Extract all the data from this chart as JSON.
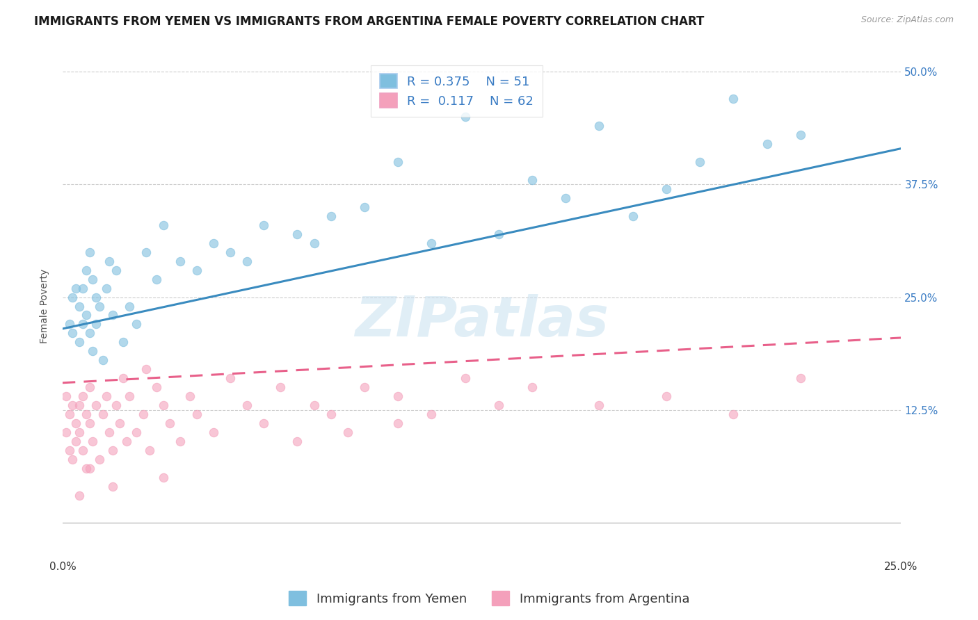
{
  "title": "IMMIGRANTS FROM YEMEN VS IMMIGRANTS FROM ARGENTINA FEMALE POVERTY CORRELATION CHART",
  "source": "Source: ZipAtlas.com",
  "xlabel_label": "Immigrants from Yemen",
  "xlabel2_label": "Immigrants from Argentina",
  "ylabel": "Female Poverty",
  "xlim": [
    0.0,
    0.25
  ],
  "ylim": [
    -0.04,
    0.52
  ],
  "plot_ylim": [
    0.0,
    0.52
  ],
  "ytick_values": [
    0.125,
    0.25,
    0.375,
    0.5
  ],
  "xtick_values": [
    0.0,
    0.25
  ],
  "xtick_labels": [
    "0.0%",
    "25.0%"
  ],
  "R_yemen": 0.375,
  "N_yemen": 51,
  "R_argentina": 0.117,
  "N_argentina": 62,
  "color_yemen": "#7fbfdf",
  "color_argentina": "#f4a0bb",
  "color_trendline_yemen": "#3a8bbf",
  "color_trendline_argentina": "#e8608a",
  "watermark": "ZIPatlas",
  "title_fontsize": 12,
  "axis_label_fontsize": 10,
  "tick_fontsize": 11,
  "legend_fontsize": 13,
  "trendline_yemen_x0": 0.0,
  "trendline_yemen_y0": 0.215,
  "trendline_yemen_x1": 0.25,
  "trendline_yemen_y1": 0.415,
  "trendline_arg_x0": 0.0,
  "trendline_arg_y0": 0.155,
  "trendline_arg_x1": 0.25,
  "trendline_arg_y1": 0.205,
  "yemen_scatter_x": [
    0.002,
    0.003,
    0.003,
    0.004,
    0.005,
    0.005,
    0.006,
    0.006,
    0.007,
    0.007,
    0.008,
    0.008,
    0.009,
    0.009,
    0.01,
    0.01,
    0.011,
    0.012,
    0.013,
    0.014,
    0.015,
    0.016,
    0.018,
    0.02,
    0.022,
    0.025,
    0.028,
    0.03,
    0.035,
    0.04,
    0.045,
    0.05,
    0.06,
    0.07,
    0.08,
    0.09,
    0.1,
    0.12,
    0.14,
    0.16,
    0.18,
    0.2,
    0.22,
    0.13,
    0.15,
    0.17,
    0.19,
    0.21,
    0.11,
    0.055,
    0.075
  ],
  "yemen_scatter_y": [
    0.22,
    0.21,
    0.25,
    0.26,
    0.2,
    0.24,
    0.22,
    0.26,
    0.28,
    0.23,
    0.21,
    0.3,
    0.27,
    0.19,
    0.25,
    0.22,
    0.24,
    0.18,
    0.26,
    0.29,
    0.23,
    0.28,
    0.2,
    0.24,
    0.22,
    0.3,
    0.27,
    0.33,
    0.29,
    0.28,
    0.31,
    0.3,
    0.33,
    0.32,
    0.34,
    0.35,
    0.4,
    0.45,
    0.38,
    0.44,
    0.37,
    0.47,
    0.43,
    0.32,
    0.36,
    0.34,
    0.4,
    0.42,
    0.31,
    0.29,
    0.31
  ],
  "argentina_scatter_x": [
    0.001,
    0.001,
    0.002,
    0.002,
    0.003,
    0.003,
    0.004,
    0.004,
    0.005,
    0.005,
    0.006,
    0.006,
    0.007,
    0.007,
    0.008,
    0.008,
    0.009,
    0.01,
    0.011,
    0.012,
    0.013,
    0.014,
    0.015,
    0.016,
    0.017,
    0.018,
    0.019,
    0.02,
    0.022,
    0.024,
    0.026,
    0.028,
    0.03,
    0.032,
    0.035,
    0.038,
    0.04,
    0.045,
    0.05,
    0.055,
    0.06,
    0.065,
    0.07,
    0.075,
    0.08,
    0.085,
    0.09,
    0.1,
    0.11,
    0.12,
    0.13,
    0.14,
    0.16,
    0.18,
    0.2,
    0.22,
    0.1,
    0.03,
    0.025,
    0.015,
    0.008,
    0.005
  ],
  "argentina_scatter_y": [
    0.1,
    0.14,
    0.08,
    0.12,
    0.13,
    0.07,
    0.11,
    0.09,
    0.1,
    0.13,
    0.08,
    0.14,
    0.12,
    0.06,
    0.11,
    0.15,
    0.09,
    0.13,
    0.07,
    0.12,
    0.14,
    0.1,
    0.08,
    0.13,
    0.11,
    0.16,
    0.09,
    0.14,
    0.1,
    0.12,
    0.08,
    0.15,
    0.13,
    0.11,
    0.09,
    0.14,
    0.12,
    0.1,
    0.16,
    0.13,
    0.11,
    0.15,
    0.09,
    0.13,
    0.12,
    0.1,
    0.15,
    0.14,
    0.12,
    0.16,
    0.13,
    0.15,
    0.13,
    0.14,
    0.12,
    0.16,
    0.11,
    0.05,
    0.17,
    0.04,
    0.06,
    0.03
  ]
}
